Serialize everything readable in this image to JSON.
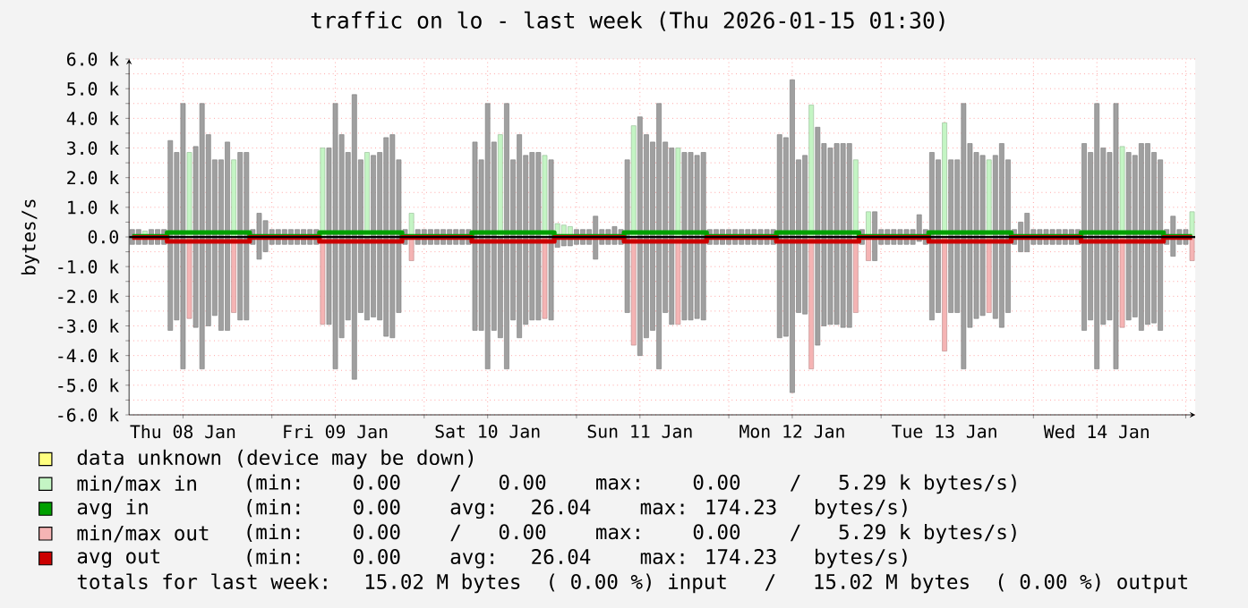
{
  "chart_data": {
    "type": "bar",
    "title": "traffic on lo - last week (Thu 2026-01-15 01:30)",
    "ylabel": "bytes/s",
    "xlim": [
      "2026-01-08T01:30",
      "2026-01-15T01:30"
    ],
    "xticks": [
      {
        "value": "2026-01-08T10:00",
        "label": "Thu 08 Jan"
      },
      {
        "value": "2026-01-09T00:00",
        "label": null
      },
      {
        "value": "2026-01-09T10:00",
        "label": "Fri 09 Jan"
      },
      {
        "value": "2026-01-10T00:00",
        "label": null
      },
      {
        "value": "2026-01-10T10:00",
        "label": "Sat 10 Jan"
      },
      {
        "value": "2026-01-11T00:00",
        "label": null
      },
      {
        "value": "2026-01-11T10:00",
        "label": "Sun 11 Jan"
      },
      {
        "value": "2026-01-12T00:00",
        "label": null
      },
      {
        "value": "2026-01-12T10:00",
        "label": "Mon 12 Jan"
      },
      {
        "value": "2026-01-13T00:00",
        "label": null
      },
      {
        "value": "2026-01-13T10:00",
        "label": "Tue 13 Jan"
      },
      {
        "value": "2026-01-14T00:00",
        "label": null
      },
      {
        "value": "2026-01-14T10:00",
        "label": "Wed 14 Jan"
      },
      {
        "value": "2026-01-15T00:00",
        "label": null
      }
    ],
    "ylim": [
      -6000,
      6000
    ],
    "yticks": [
      {
        "value": -6000,
        "label": "-6.0 k"
      },
      {
        "value": -5500,
        "label": null
      },
      {
        "value": -5000,
        "label": "-5.0 k"
      },
      {
        "value": -4500,
        "label": null
      },
      {
        "value": -4000,
        "label": "-4.0 k"
      },
      {
        "value": -3500,
        "label": null
      },
      {
        "value": -3000,
        "label": "-3.0 k"
      },
      {
        "value": -2500,
        "label": null
      },
      {
        "value": -2000,
        "label": "-2.0 k"
      },
      {
        "value": -1500,
        "label": null
      },
      {
        "value": -1000,
        "label": "-1.0 k"
      },
      {
        "value": -500,
        "label": null
      },
      {
        "value": 0,
        "label": "0.0"
      },
      {
        "value": 500,
        "label": null
      },
      {
        "value": 1000,
        "label": "1.0 k"
      },
      {
        "value": 1500,
        "label": null
      },
      {
        "value": 2000,
        "label": "2.0 k"
      },
      {
        "value": 2500,
        "label": null
      },
      {
        "value": 3000,
        "label": "3.0 k"
      },
      {
        "value": 3500,
        "label": null
      },
      {
        "value": 4000,
        "label": "4.0 k"
      },
      {
        "value": 4500,
        "label": null
      },
      {
        "value": 5000,
        "label": "5.0 k"
      },
      {
        "value": 5500,
        "label": null
      },
      {
        "value": 6000,
        "label": "6.0 k"
      }
    ],
    "grid": true,
    "stacked": true,
    "legend": "bottom",
    "ref_lines": [
      {
        "axis": "y",
        "value": 0,
        "color": "#000000"
      }
    ],
    "x": [
      "2026-01-08T02:00",
      "2026-01-08T03:00",
      "2026-01-08T04:00",
      "2026-01-08T05:00",
      "2026-01-08T06:00",
      "2026-01-08T07:00",
      "2026-01-08T08:00",
      "2026-01-08T09:00",
      "2026-01-08T10:00",
      "2026-01-08T11:00",
      "2026-01-08T12:00",
      "2026-01-08T13:00",
      "2026-01-08T14:00",
      "2026-01-08T15:00",
      "2026-01-08T16:00",
      "2026-01-08T17:00",
      "2026-01-08T18:00",
      "2026-01-08T19:00",
      "2026-01-08T20:00",
      "2026-01-08T21:00",
      "2026-01-08T22:00",
      "2026-01-08T23:00",
      "2026-01-09T00:00",
      "2026-01-09T01:00",
      "2026-01-09T02:00",
      "2026-01-09T03:00",
      "2026-01-09T04:00",
      "2026-01-09T05:00",
      "2026-01-09T06:00",
      "2026-01-09T07:00",
      "2026-01-09T08:00",
      "2026-01-09T09:00",
      "2026-01-09T10:00",
      "2026-01-09T11:00",
      "2026-01-09T12:00",
      "2026-01-09T13:00",
      "2026-01-09T14:00",
      "2026-01-09T15:00",
      "2026-01-09T16:00",
      "2026-01-09T17:00",
      "2026-01-09T18:00",
      "2026-01-09T19:00",
      "2026-01-09T20:00",
      "2026-01-09T21:00",
      "2026-01-09T22:00",
      "2026-01-09T23:00",
      "2026-01-10T00:00",
      "2026-01-10T01:00",
      "2026-01-10T02:00",
      "2026-01-10T03:00",
      "2026-01-10T04:00",
      "2026-01-10T05:00",
      "2026-01-10T06:00",
      "2026-01-10T07:00",
      "2026-01-10T08:00",
      "2026-01-10T09:00",
      "2026-01-10T10:00",
      "2026-01-10T11:00",
      "2026-01-10T12:00",
      "2026-01-10T13:00",
      "2026-01-10T14:00",
      "2026-01-10T15:00",
      "2026-01-10T16:00",
      "2026-01-10T17:00",
      "2026-01-10T18:00",
      "2026-01-10T19:00",
      "2026-01-10T20:00",
      "2026-01-10T21:00",
      "2026-01-10T22:00",
      "2026-01-10T23:00",
      "2026-01-11T00:00",
      "2026-01-11T01:00",
      "2026-01-11T02:00",
      "2026-01-11T03:00",
      "2026-01-11T04:00",
      "2026-01-11T05:00",
      "2026-01-11T06:00",
      "2026-01-11T07:00",
      "2026-01-11T08:00",
      "2026-01-11T09:00",
      "2026-01-11T10:00",
      "2026-01-11T11:00",
      "2026-01-11T12:00",
      "2026-01-11T13:00",
      "2026-01-11T14:00",
      "2026-01-11T15:00",
      "2026-01-11T16:00",
      "2026-01-11T17:00",
      "2026-01-11T18:00",
      "2026-01-11T19:00",
      "2026-01-11T20:00",
      "2026-01-11T21:00",
      "2026-01-11T22:00",
      "2026-01-11T23:00",
      "2026-01-12T00:00",
      "2026-01-12T01:00",
      "2026-01-12T02:00",
      "2026-01-12T03:00",
      "2026-01-12T04:00",
      "2026-01-12T05:00",
      "2026-01-12T06:00",
      "2026-01-12T07:00",
      "2026-01-12T08:00",
      "2026-01-12T09:00",
      "2026-01-12T10:00",
      "2026-01-12T11:00",
      "2026-01-12T12:00",
      "2026-01-12T13:00",
      "2026-01-12T14:00",
      "2026-01-12T15:00",
      "2026-01-12T16:00",
      "2026-01-12T17:00",
      "2026-01-12T18:00",
      "2026-01-12T19:00",
      "2026-01-12T20:00",
      "2026-01-12T21:00",
      "2026-01-12T22:00",
      "2026-01-12T23:00",
      "2026-01-13T00:00",
      "2026-01-13T01:00",
      "2026-01-13T02:00",
      "2026-01-13T03:00",
      "2026-01-13T04:00",
      "2026-01-13T05:00",
      "2026-01-13T06:00",
      "2026-01-13T07:00",
      "2026-01-13T08:00",
      "2026-01-13T09:00",
      "2026-01-13T10:00",
      "2026-01-13T11:00",
      "2026-01-13T12:00",
      "2026-01-13T13:00",
      "2026-01-13T14:00",
      "2026-01-13T15:00",
      "2026-01-13T16:00",
      "2026-01-13T17:00",
      "2026-01-13T18:00",
      "2026-01-13T19:00",
      "2026-01-13T20:00",
      "2026-01-13T21:00",
      "2026-01-13T22:00",
      "2026-01-13T23:00",
      "2026-01-14T00:00",
      "2026-01-14T01:00",
      "2026-01-14T02:00",
      "2026-01-14T03:00",
      "2026-01-14T04:00",
      "2026-01-14T05:00",
      "2026-01-14T06:00",
      "2026-01-14T07:00",
      "2026-01-14T08:00",
      "2026-01-14T09:00",
      "2026-01-14T10:00",
      "2026-01-14T11:00",
      "2026-01-14T12:00",
      "2026-01-14T13:00",
      "2026-01-14T14:00",
      "2026-01-14T15:00",
      "2026-01-14T16:00",
      "2026-01-14T17:00",
      "2026-01-14T18:00",
      "2026-01-14T19:00",
      "2026-01-14T20:00",
      "2026-01-14T21:00",
      "2026-01-14T22:00",
      "2026-01-14T23:00",
      "2026-01-15T00:00",
      "2026-01-15T01:00"
    ],
    "series": [
      {
        "name": "data unknown (device may be down)",
        "type": "area",
        "color": "#ffff80",
        "values": [
          null,
          null,
          null,
          null,
          null,
          null,
          null,
          null,
          null,
          null,
          null,
          null,
          null,
          null,
          null,
          null,
          null,
          null,
          null,
          null,
          null,
          null,
          null,
          null,
          null,
          null,
          null,
          null,
          null,
          null,
          null,
          null,
          null,
          null,
          null,
          null,
          null,
          null,
          null,
          null,
          null,
          null,
          null,
          null,
          null,
          null,
          null,
          null,
          null,
          null,
          null,
          null,
          null,
          null,
          null,
          null,
          null,
          null,
          null,
          null,
          null,
          null,
          null,
          null,
          null,
          null,
          null,
          null,
          null,
          null,
          null,
          null,
          null,
          null,
          null,
          null,
          null,
          null,
          null,
          null,
          null,
          null,
          null,
          null,
          null,
          null,
          null,
          null,
          null,
          null,
          null,
          null,
          null,
          null,
          null,
          null,
          null,
          null,
          null,
          null,
          null,
          null,
          null,
          null,
          null,
          null,
          null,
          null,
          null,
          null,
          null,
          null,
          null,
          null,
          null,
          null,
          null,
          null,
          null,
          null,
          null,
          null,
          null,
          null,
          null,
          null,
          null,
          null,
          null,
          null,
          null,
          null,
          null,
          null,
          null,
          null,
          null,
          null,
          null,
          null,
          null,
          null,
          null,
          null,
          null,
          null,
          null,
          null,
          null,
          null,
          null,
          null,
          null,
          null,
          null,
          null,
          null,
          null,
          null,
          null,
          null,
          null,
          null,
          null,
          null,
          null,
          null,
          null
        ]
      },
      {
        "name": "min/max in",
        "color": "#c4f5c4",
        "values": [
          null,
          null,
          200,
          null,
          null,
          null,
          null,
          null,
          null,
          2850,
          null,
          null,
          null,
          null,
          null,
          null,
          2600,
          null,
          null,
          null,
          null,
          null,
          null,
          null,
          null,
          null,
          null,
          null,
          null,
          null,
          3000,
          null,
          null,
          null,
          null,
          null,
          null,
          2850,
          null,
          null,
          null,
          null,
          null,
          null,
          800,
          null,
          null,
          null,
          null,
          null,
          null,
          null,
          null,
          null,
          null,
          null,
          null,
          null,
          3450,
          null,
          null,
          null,
          null,
          null,
          null,
          2750,
          null,
          450,
          400,
          350,
          null,
          null,
          null,
          null,
          null,
          null,
          null,
          null,
          null,
          3750,
          null,
          null,
          null,
          null,
          null,
          null,
          3000,
          null,
          null,
          null,
          null,
          null,
          null,
          null,
          null,
          null,
          null,
          null,
          null,
          null,
          null,
          null,
          null,
          null,
          null,
          null,
          null,
          4450,
          null,
          null,
          null,
          null,
          null,
          null,
          2600,
          null,
          850,
          null,
          null,
          null,
          null,
          null,
          null,
          null,
          null,
          null,
          null,
          null,
          3850,
          null,
          null,
          null,
          null,
          null,
          null,
          2600,
          null,
          null,
          null,
          null,
          null,
          null,
          null,
          null,
          null,
          null,
          null,
          null,
          null,
          null,
          null,
          null,
          null,
          null,
          null,
          null,
          3050,
          null,
          null,
          null,
          null,
          null,
          null,
          null,
          null,
          null,
          null,
          850
        ]
      },
      {
        "name": "avg in",
        "type": "step",
        "color": "#00a000",
        "values": [
          20,
          20,
          20,
          20,
          20,
          20,
          150,
          150,
          150,
          150,
          150,
          150,
          150,
          150,
          150,
          150,
          150,
          150,
          150,
          20,
          20,
          20,
          20,
          20,
          20,
          20,
          20,
          20,
          20,
          20,
          150,
          150,
          150,
          150,
          150,
          150,
          150,
          150,
          150,
          150,
          150,
          150,
          150,
          20,
          20,
          20,
          20,
          20,
          20,
          20,
          20,
          20,
          20,
          20,
          150,
          150,
          150,
          150,
          150,
          150,
          150,
          150,
          150,
          150,
          150,
          150,
          150,
          20,
          20,
          20,
          20,
          20,
          20,
          20,
          20,
          20,
          20,
          20,
          150,
          150,
          150,
          150,
          150,
          150,
          150,
          150,
          150,
          150,
          150,
          150,
          150,
          20,
          20,
          20,
          20,
          20,
          20,
          20,
          20,
          20,
          20,
          20,
          150,
          150,
          150,
          150,
          150,
          150,
          150,
          150,
          150,
          150,
          150,
          150,
          150,
          20,
          20,
          20,
          20,
          20,
          20,
          20,
          20,
          20,
          20,
          20,
          150,
          150,
          150,
          150,
          150,
          150,
          150,
          150,
          150,
          150,
          150,
          150,
          150,
          20,
          20,
          20,
          20,
          20,
          20,
          20,
          20,
          20,
          20,
          20,
          150,
          150,
          150,
          150,
          150,
          150,
          150,
          150,
          150,
          150,
          150,
          150,
          150,
          20,
          20,
          20,
          20,
          20
        ]
      },
      {
        "name": "min/max out",
        "color": "#f5b4b4",
        "values": [
          null,
          null,
          null,
          null,
          null,
          null,
          null,
          null,
          null,
          -2750,
          null,
          null,
          null,
          null,
          null,
          null,
          -2550,
          null,
          null,
          null,
          null,
          null,
          null,
          null,
          null,
          null,
          null,
          null,
          null,
          null,
          -2950,
          null,
          null,
          null,
          null,
          null,
          null,
          null,
          null,
          null,
          null,
          null,
          null,
          null,
          -800,
          null,
          null,
          null,
          null,
          null,
          null,
          null,
          null,
          null,
          null,
          null,
          null,
          null,
          null,
          null,
          null,
          null,
          null,
          null,
          null,
          -2750,
          null,
          null,
          null,
          null,
          null,
          null,
          null,
          null,
          null,
          null,
          null,
          null,
          null,
          -3650,
          null,
          null,
          null,
          null,
          null,
          null,
          -2950,
          null,
          null,
          null,
          null,
          null,
          null,
          null,
          null,
          null,
          null,
          null,
          null,
          null,
          null,
          null,
          null,
          null,
          null,
          null,
          null,
          -4450,
          null,
          null,
          null,
          null,
          null,
          null,
          -2550,
          null,
          -800,
          null,
          null,
          null,
          null,
          null,
          null,
          null,
          null,
          null,
          null,
          null,
          -3850,
          null,
          null,
          null,
          null,
          null,
          null,
          -2550,
          null,
          null,
          null,
          null,
          null,
          null,
          null,
          null,
          null,
          null,
          null,
          null,
          null,
          null,
          null,
          null,
          null,
          null,
          null,
          null,
          -3050,
          null,
          null,
          null,
          null,
          null,
          null,
          null,
          null,
          null,
          null,
          -800
        ]
      },
      {
        "name": "avg out",
        "type": "step",
        "color": "#cc0000",
        "values": [
          -20,
          -20,
          -20,
          -20,
          -20,
          -20,
          -150,
          -150,
          -150,
          -150,
          -150,
          -150,
          -150,
          -150,
          -150,
          -150,
          -150,
          -150,
          -150,
          -20,
          -20,
          -20,
          -20,
          -20,
          -20,
          -20,
          -20,
          -20,
          -20,
          -20,
          -150,
          -150,
          -150,
          -150,
          -150,
          -150,
          -150,
          -150,
          -150,
          -150,
          -150,
          -150,
          -150,
          -20,
          -20,
          -20,
          -20,
          -20,
          -20,
          -20,
          -20,
          -20,
          -20,
          -20,
          -150,
          -150,
          -150,
          -150,
          -150,
          -150,
          -150,
          -150,
          -150,
          -150,
          -150,
          -150,
          -150,
          -20,
          -20,
          -20,
          -20,
          -20,
          -20,
          -20,
          -20,
          -20,
          -20,
          -20,
          -150,
          -150,
          -150,
          -150,
          -150,
          -150,
          -150,
          -150,
          -150,
          -150,
          -150,
          -150,
          -150,
          -20,
          -20,
          -20,
          -20,
          -20,
          -20,
          -20,
          -20,
          -20,
          -20,
          -20,
          -150,
          -150,
          -150,
          -150,
          -150,
          -150,
          -150,
          -150,
          -150,
          -150,
          -150,
          -150,
          -150,
          -20,
          -20,
          -20,
          -20,
          -20,
          -20,
          -20,
          -20,
          -20,
          -20,
          -20,
          -150,
          -150,
          -150,
          -150,
          -150,
          -150,
          -150,
          -150,
          -150,
          -150,
          -150,
          -150,
          -150,
          -20,
          -20,
          -20,
          -20,
          -20,
          -20,
          -20,
          -20,
          -20,
          -20,
          -20,
          -150,
          -150,
          -150,
          -150,
          -150,
          -150,
          -150,
          -150,
          -150,
          -150,
          -150,
          -150,
          -150,
          -20,
          -20,
          -20,
          -20,
          -20
        ]
      },
      {
        "color": "#a0a0a0",
        "values": [
          250,
          250,
          null,
          250,
          250,
          250,
          3250,
          2850,
          4500,
          null,
          3050,
          4500,
          3450,
          2600,
          2600,
          3200,
          null,
          2850,
          2850,
          250,
          800,
          550,
          250,
          250,
          250,
          250,
          250,
          250,
          250,
          250,
          null,
          3000,
          4500,
          3450,
          2850,
          4800,
          2600,
          null,
          2750,
          2850,
          3350,
          3450,
          2600,
          250,
          null,
          250,
          250,
          250,
          250,
          250,
          250,
          250,
          250,
          250,
          3200,
          2600,
          4500,
          3200,
          null,
          4500,
          2600,
          3450,
          2750,
          2850,
          2850,
          null,
          2600,
          null,
          null,
          null,
          250,
          250,
          250,
          700,
          250,
          250,
          350,
          250,
          2600,
          null,
          4050,
          3450,
          3200,
          4500,
          3200,
          3000,
          null,
          2850,
          2850,
          2750,
          2850,
          250,
          250,
          250,
          250,
          250,
          250,
          250,
          250,
          250,
          250,
          250,
          3450,
          3350,
          5300,
          2600,
          2750,
          null,
          3700,
          3150,
          3000,
          3150,
          3150,
          3150,
          null,
          250,
          null,
          850,
          250,
          250,
          250,
          250,
          250,
          250,
          750,
          250,
          2850,
          2600,
          null,
          2600,
          2600,
          4500,
          3150,
          2850,
          2750,
          null,
          2750,
          3150,
          2600,
          250,
          500,
          800,
          250,
          250,
          250,
          250,
          250,
          250,
          250,
          250,
          3150,
          2850,
          4500,
          3000,
          2850,
          4500,
          null,
          2850,
          2750,
          3150,
          3150,
          2850,
          2600,
          250,
          700,
          250,
          250,
          null
        ]
      },
      {
        "color": "#a0a0a0",
        "values": [
          -250,
          -250,
          -250,
          -250,
          -250,
          -250,
          -3150,
          -2800,
          -4450,
          null,
          -3050,
          -4450,
          -3000,
          -2650,
          -3150,
          -3150,
          null,
          -2800,
          -2800,
          -250,
          -750,
          -500,
          -250,
          -250,
          -250,
          -250,
          -250,
          -250,
          -250,
          -250,
          null,
          -2950,
          -4450,
          -3400,
          -2800,
          -4800,
          -2550,
          -2800,
          -2700,
          -2800,
          -3350,
          -3400,
          -2550,
          -250,
          null,
          -250,
          -250,
          -250,
          -250,
          -250,
          -250,
          -250,
          -250,
          -250,
          -3150,
          -3150,
          -4450,
          -3150,
          -3400,
          -4450,
          -2800,
          -3400,
          -2950,
          -2800,
          -2800,
          null,
          -2800,
          -350,
          -300,
          -300,
          -250,
          -250,
          -250,
          -750,
          -250,
          -250,
          -250,
          -250,
          -2550,
          null,
          -4000,
          -3400,
          -3150,
          -4450,
          -2550,
          -2950,
          null,
          -2800,
          -2800,
          -2750,
          -2800,
          -250,
          -250,
          -250,
          -250,
          -250,
          -250,
          -250,
          -250,
          -250,
          -250,
          -250,
          -3400,
          -3350,
          -5250,
          -2550,
          -2600,
          null,
          -3650,
          -3000,
          -2950,
          -2950,
          -3050,
          -3050,
          null,
          -250,
          null,
          -800,
          -250,
          -250,
          -250,
          -250,
          -250,
          -250,
          -150,
          -250,
          -2800,
          -2550,
          null,
          -2550,
          -2550,
          -4450,
          -3050,
          -2750,
          -2650,
          null,
          -2750,
          -3050,
          -2550,
          -250,
          -500,
          -500,
          -250,
          -250,
          -250,
          -250,
          -250,
          -250,
          -250,
          -250,
          -3150,
          -2800,
          -4450,
          -2950,
          -2800,
          -4450,
          null,
          -2800,
          -2700,
          -3150,
          -2950,
          -2900,
          -3150,
          -250,
          -650,
          -250,
          -250,
          null
        ]
      }
    ],
    "annotations": [
      "(min:   0.00    /   0.00    max:   0.00    /   5.29 k bytes/s)",
      "(min:   0.00    avg:  26.04    max: 174.23   bytes/s)",
      "(min:   0.00    /   0.00    max:   0.00    /   5.29 k bytes/s)",
      "(min:   0.00    avg:  26.04    max: 174.23   bytes/s)",
      "totals for last week:  15.02 M bytes  ( 0.00 %) input   /   15.02 M bytes  ( 0.00 %) output"
    ]
  }
}
